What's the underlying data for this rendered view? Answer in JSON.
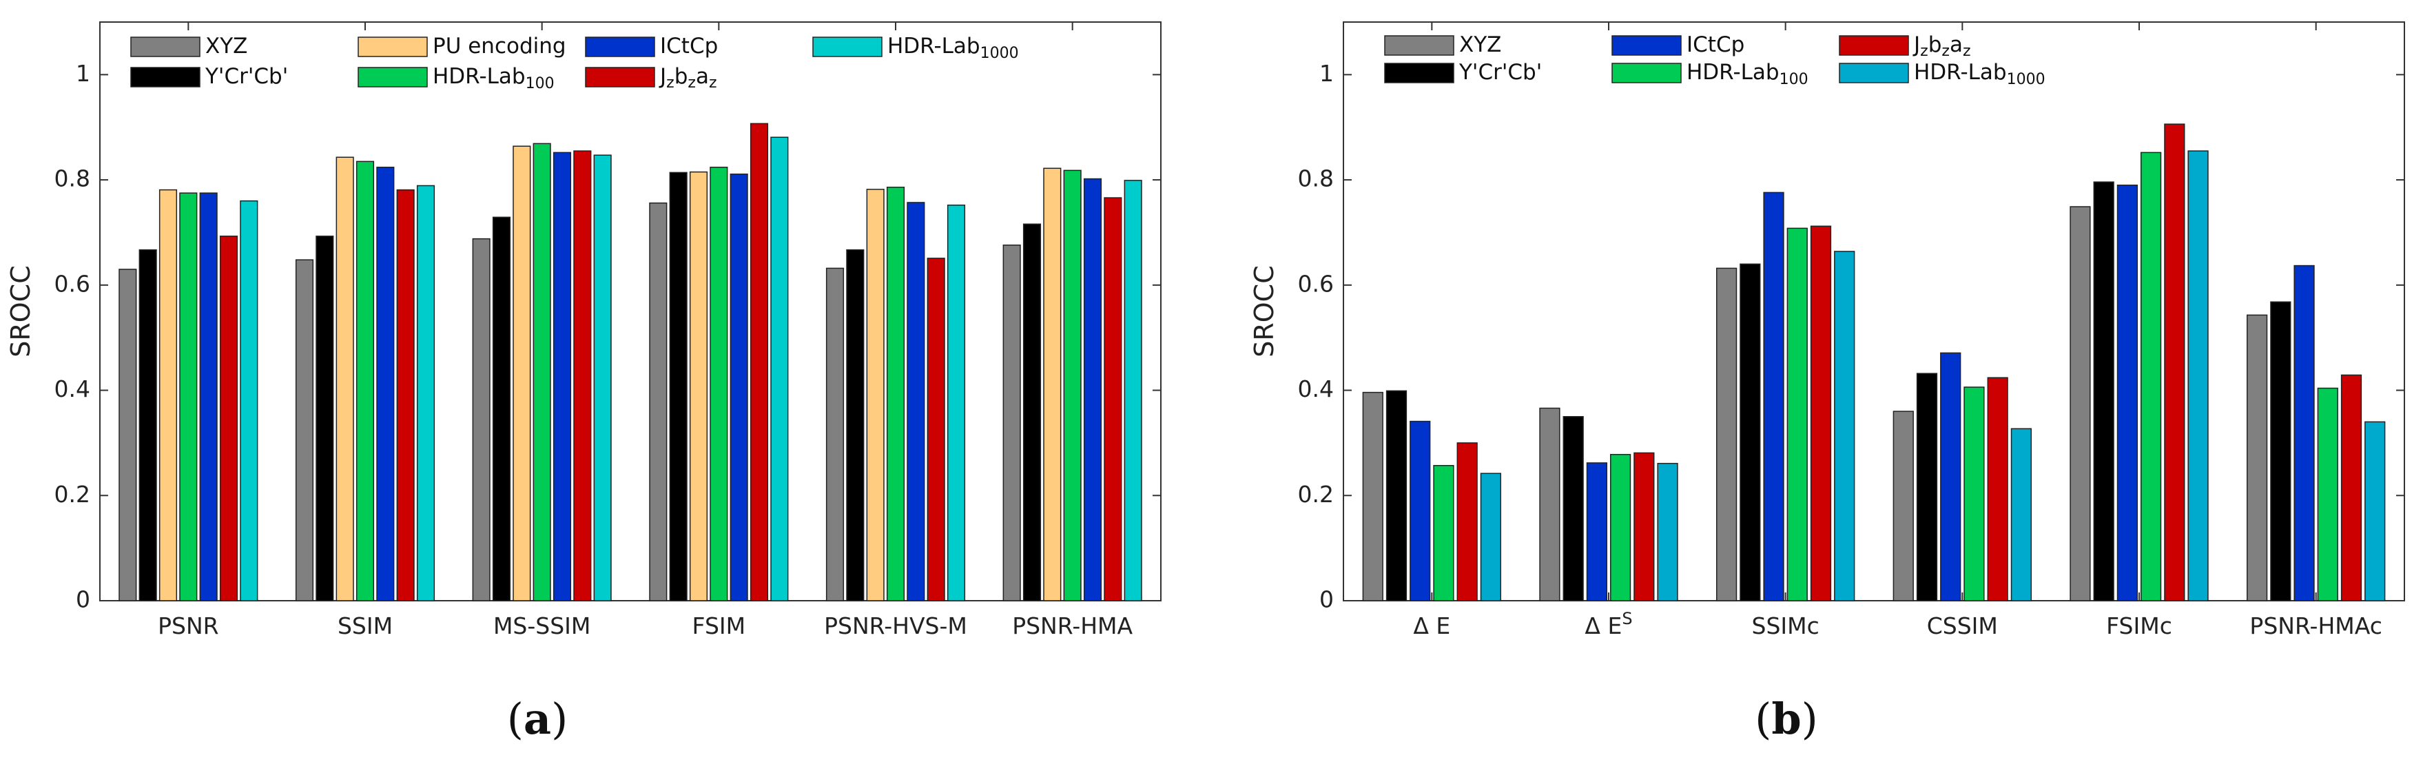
{
  "colors": {
    "XYZ": "#808080",
    "YCrCb": "#000000",
    "PU": "#ffcc80",
    "HDRLab100": "#00cc55",
    "ICtCp": "#0033cc",
    "Jzazbz": "#cc0000",
    "HDRLab1000_a": "#00cccc",
    "HDRLab1000_b": "#00aacc"
  },
  "chart_data": [
    {
      "type": "bar",
      "panel_label": {
        "open": "(",
        "letter": "a",
        "close": ")"
      },
      "ylabel": "SROCC",
      "ylim": [
        0,
        1.1
      ],
      "yticks": [
        0,
        0.2,
        0.4,
        0.6,
        0.8,
        1
      ],
      "ytick_labels": [
        "0",
        "0.2",
        "0.4",
        "0.6",
        "0.8",
        "1"
      ],
      "legend_position": "top",
      "categories": [
        "PSNR",
        "SSIM",
        "MS-SSIM",
        "FSIM",
        "PSNR-HVS-M",
        "PSNR-HMA"
      ],
      "series": [
        {
          "name": "XYZ",
          "sub": "",
          "sup": "",
          "color_key": "XYZ",
          "values": [
            0.63,
            0.648,
            0.688,
            0.756,
            0.632,
            0.676
          ]
        },
        {
          "name": "Y'Cr'Cb'",
          "sub": "",
          "sup": "",
          "color_key": "YCrCb",
          "values": [
            0.667,
            0.693,
            0.729,
            0.814,
            0.667,
            0.716
          ]
        },
        {
          "name": "PU encoding",
          "sub": "",
          "sup": "",
          "color_key": "PU",
          "values": [
            0.781,
            0.843,
            0.864,
            0.815,
            0.782,
            0.822
          ]
        },
        {
          "name": "HDR-Lab",
          "sub": "100",
          "sup": "",
          "color_key": "HDRLab100",
          "values": [
            0.775,
            0.835,
            0.869,
            0.824,
            0.786,
            0.818
          ]
        },
        {
          "name": "ICtCp",
          "sub": "",
          "sup": "",
          "color_key": "ICtCp",
          "values": [
            0.775,
            0.824,
            0.852,
            0.811,
            0.757,
            0.802
          ]
        },
        {
          "name": "J",
          "sub": "z",
          "sup": "",
          "jz": true,
          "color_key": "Jzazbz",
          "values": [
            0.693,
            0.781,
            0.855,
            0.907,
            0.651,
            0.766
          ]
        },
        {
          "name": "HDR-Lab",
          "sub": "1000",
          "sup": "",
          "color_key": "HDRLab1000_a",
          "values": [
            0.76,
            0.789,
            0.847,
            0.881,
            0.752,
            0.799
          ]
        }
      ]
    },
    {
      "type": "bar",
      "panel_label": {
        "open": "(",
        "letter": "b",
        "close": ")"
      },
      "ylabel": "SROCC",
      "ylim": [
        0,
        1.1
      ],
      "yticks": [
        0,
        0.2,
        0.4,
        0.6,
        0.8,
        1
      ],
      "ytick_labels": [
        "0",
        "0.2",
        "0.4",
        "0.6",
        "0.8",
        "1"
      ],
      "legend_position": "top",
      "categories": [
        {
          "base": "Δ E",
          "sup": ""
        },
        {
          "base": "Δ E",
          "sup": "S"
        },
        {
          "base": "SSIMc",
          "sup": ""
        },
        {
          "base": "CSSIM",
          "sup": ""
        },
        {
          "base": "FSIMc",
          "sup": ""
        },
        {
          "base": "PSNR-HMAc",
          "sup": ""
        }
      ],
      "series": [
        {
          "name": "XYZ",
          "sub": "",
          "color_key": "XYZ",
          "values": [
            0.396,
            0.366,
            0.632,
            0.36,
            0.749,
            0.543
          ]
        },
        {
          "name": "Y'Cr'Cb'",
          "sub": "",
          "color_key": "YCrCb",
          "values": [
            0.399,
            0.35,
            0.64,
            0.432,
            0.796,
            0.568
          ]
        },
        {
          "name": "ICtCp",
          "sub": "",
          "color_key": "ICtCp",
          "values": [
            0.341,
            0.262,
            0.776,
            0.471,
            0.79,
            0.637
          ]
        },
        {
          "name": "HDR-Lab",
          "sub": "100",
          "color_key": "HDRLab100",
          "values": [
            0.257,
            0.278,
            0.708,
            0.406,
            0.852,
            0.404
          ]
        },
        {
          "name": "J",
          "sub": "z",
          "jz": true,
          "color_key": "Jzazbz",
          "values": [
            0.3,
            0.281,
            0.712,
            0.424,
            0.906,
            0.429
          ]
        },
        {
          "name": "HDR-Lab",
          "sub": "1000",
          "color_key": "HDRLab1000_b",
          "values": [
            0.242,
            0.261,
            0.664,
            0.327,
            0.855,
            0.34
          ]
        }
      ]
    }
  ]
}
